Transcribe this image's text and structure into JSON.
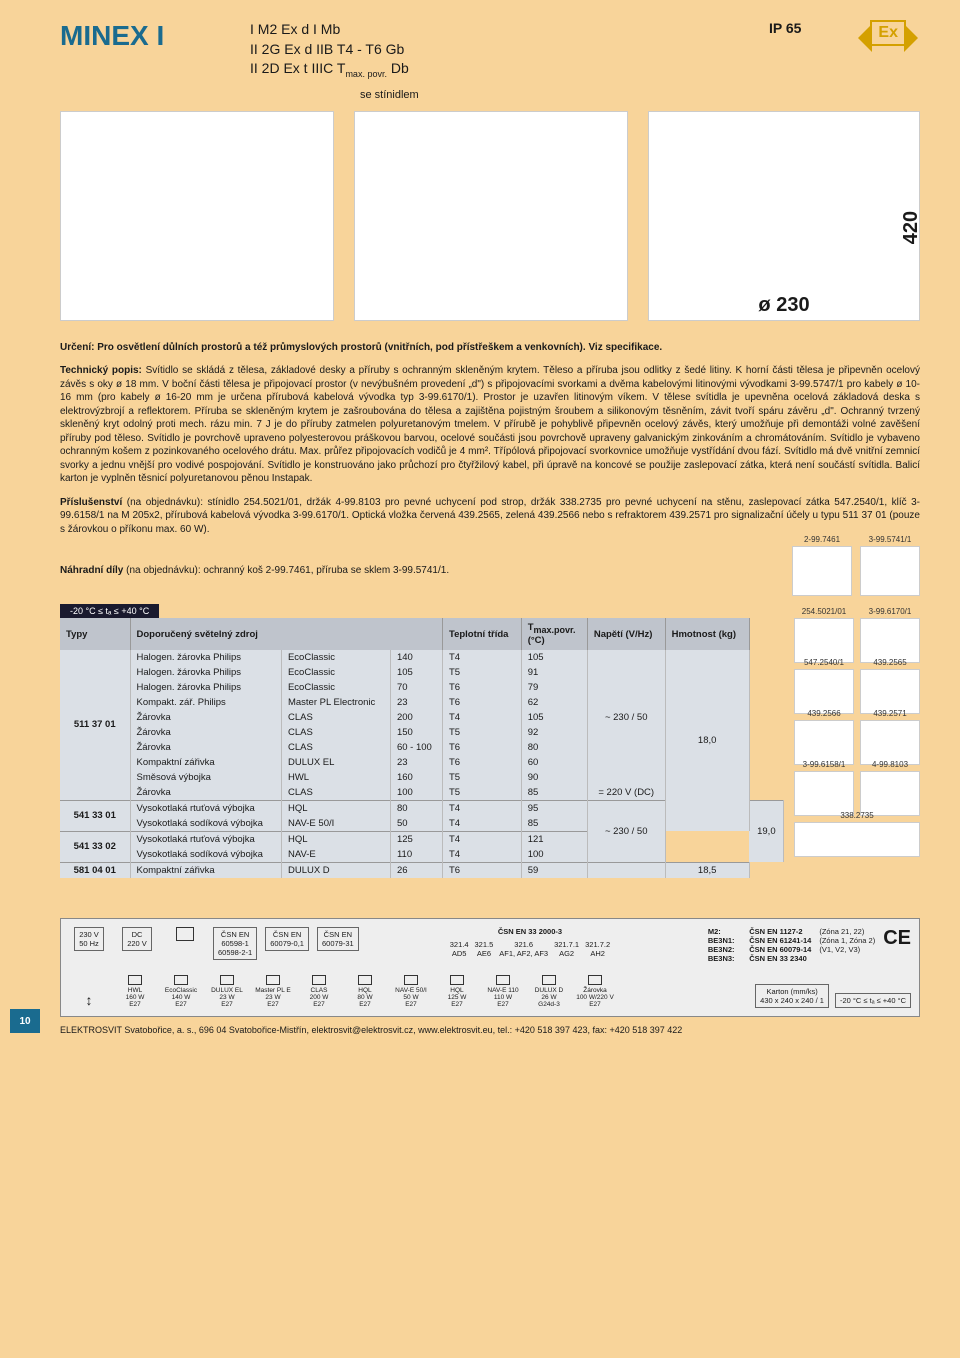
{
  "title": "MINEX I",
  "ratings": [
    "I M2 Ex d I Mb",
    "II 2G Ex d IIB  T4 - T6  Gb"
  ],
  "rating3_a": "II 2D Ex t IIIC  T",
  "rating3_sub": "max. povr.",
  "rating3_b": "  Db",
  "ip": "IP 65",
  "ex_label": "Ex",
  "stin": "se stínidlem",
  "dim_w": "ø 230",
  "dim_h": "420",
  "urceni": "Určení: Pro osvětlení důlních prostorů a též průmyslových prostorů (vnitřních, pod přístřeškem a venkovních). Viz specifikace.",
  "tech_label": "Technický popis:",
  "tech": " Svítidlo se skládá z tělesa, základové desky a příruby s ochranným skleněným krytem. Těleso a příruba jsou odlitky z šedé litiny. K horní části tělesa je připevněn ocelový závěs s oky ø 18 mm. V boční části tělesa je připojovací prostor (v nevýbušném provedení „d\") s připojovacími svorkami a dvěma kabelovými litinovými vývodkami 3-99.5747/1 pro kabely ø 10-16 mm (pro kabely ø 16-20 mm je určena přírubová kabelová vývodka typ 3-99.6170/1). Prostor je uzavřen litinovým víkem. V tělese svítidla je upevněna ocelová základová deska s elektrovýzbrojí a reflektorem. Příruba se skleněným krytem je zašroubována do tělesa a zajištěna pojistným šroubem a silikonovým těsněním, závit tvoří spáru závěru „d\". Ochranný tvrzený skleněný kryt odolný proti mech. rázu min. 7 J je do příruby zatmelen polyuretanovým tmelem. V přírubě je pohyblivě připevněn ocelový závěs, který umožňuje při demontáži volné zavěšení příruby pod těleso. Svítidlo je povrchově upraveno polyesterovou práškovou barvou, ocelové součásti jsou povrchově upraveny galvanickým zinkováním a chromátováním. Svítidlo je vybaveno ochranným košem z pozinkovaného ocelového drátu. Max. průřez připojovacích vodičů je 4 mm². Třípólová připojovací svorkovnice umožňuje vystřídání dvou fází. Svítidlo má dvě vnitřní zemnicí svorky a jednu vnější pro vodivé pospojování. Svítidlo je konstruováno jako průchozí pro čtyřžilový kabel, při úpravě na koncové se použije zaslepovací zátka, která není součástí svítidla. Balicí karton je vyplněn těsnicí polyuretanovou pěnou Instapak.",
  "prisl_label": "Příslušenství",
  "prisl": " (na objednávku): stínidlo 254.5021/01, držák 4-99.8103 pro pevné uchycení pod strop, držák 338.2735 pro pevné uchycení na stěnu, zaslepovací zátka 547.2540/1, klíč 3-99.6158/1 na M 205x2, přírubová kabelová vývodka 3-99.6170/1.  Optická vložka červená 439.2565, zelená 439.2566 nebo s refraktorem 439.2571 pro signalizační účely u typu 511 37 01 (pouze s žárovkou o příkonu max. 60 W).",
  "spare_label": "Náhradní díly",
  "spare": " (na objednávku): ochranný koš 2-99.7461, příruba se sklem 3-99.5741/1.",
  "spare_parts": [
    "2-99.7461",
    "3-99.5741/1"
  ],
  "temp_range": "-20 °C ≤ tₐ ≤ +40 °C",
  "headers": {
    "typy": "Typy",
    "zdroj": "Doporučený světelný zdroj",
    "teplotni": "Teplotní třída",
    "tmax": "T",
    "tmax_sub": "max.povr.",
    "tmax_unit": "(°C)",
    "napeti": "Napětí (V/Hz)",
    "hmot": "Hmotnost (kg)"
  },
  "types": {
    "t1": {
      "code": "511 37 01",
      "napeti": "~ 230 / 50",
      "hmot": "18,0",
      "rows": [
        [
          "Halogen. žárovka Philips",
          "EcoClassic",
          "140",
          "T4",
          "105"
        ],
        [
          "Halogen. žárovka Philips",
          "EcoClassic",
          "105",
          "T5",
          "91"
        ],
        [
          "Halogen. žárovka Philips",
          "EcoClassic",
          "70",
          "T6",
          "79"
        ],
        [
          "Kompakt. zář. Philips",
          "Master PL Electronic",
          "23",
          "T6",
          "62"
        ],
        [
          "Žárovka",
          "CLAS",
          "200",
          "T4",
          "105"
        ],
        [
          "Žárovka",
          "CLAS",
          "150",
          "T5",
          "92"
        ],
        [
          "Žárovka",
          "CLAS",
          "60 - 100",
          "T6",
          "80"
        ],
        [
          "Kompaktní zářivka",
          "DULUX EL",
          "23",
          "T6",
          "60"
        ],
        [
          "Směsová výbojka",
          "HWL",
          "160",
          "T5",
          "90"
        ]
      ],
      "extra": [
        "Žárovka",
        "CLAS",
        "100",
        "T5",
        "85",
        "= 220 V (DC)"
      ]
    },
    "t2": {
      "code": "541 33 01",
      "rows": [
        [
          "Vysokotlaká rtuťová výbojka",
          "HQL",
          "80",
          "T4",
          "95"
        ],
        [
          "Vysokotlaká sodíková výbojka",
          "NAV-E 50/I",
          "50",
          "T4",
          "85"
        ]
      ],
      "napeti": "~ 230 / 50",
      "hmot": "19,0"
    },
    "t3": {
      "code": "541 33 02",
      "rows": [
        [
          "Vysokotlaká rtuťová výbojka",
          "HQL",
          "125",
          "T4",
          "121"
        ],
        [
          "Vysokotlaká sodíková výbojka",
          "NAV-E",
          "110",
          "T4",
          "100"
        ]
      ]
    },
    "t4": {
      "code": "581 04 01",
      "rows": [
        [
          "Kompaktní zářivka",
          "DULUX D",
          "26",
          "T6",
          "59"
        ]
      ],
      "hmot": "18,5"
    }
  },
  "side_parts": [
    [
      "254.5021/01",
      "3-99.6170/1"
    ],
    [
      "547.2540/1",
      "439.2565"
    ],
    [
      "439.2566",
      "439.2571"
    ],
    [
      "3-99.6158/1",
      "4-99.8103"
    ]
  ],
  "side_last": "338.2735",
  "bottom": {
    "v1": "230 V\n50 Hz",
    "v2": "DC\n220 V",
    "std1": "ČSN EN\n60598-1\n60598-2-1",
    "std2": "ČSN EN\n60079-0,1",
    "std3": "ČSN EN\n60079-31",
    "std4_head": "ČSN EN 33 2000-3",
    "std4": "321.4\nAD5",
    "std5": "321.5\nAE6",
    "std6": "321.6\nAF1, AF2, AF3",
    "std7": "321.7.1\nAG2",
    "std8": "321.7.2\nAH2",
    "m2": "M2:\nBE3N1:\nBE3N2:\nBE3N3:",
    "m2std": "ČSN EN 1127-2\nČSN EN 61241-14\nČSN EN 60079-14\nČSN EN 33 2340",
    "zones": "(Zóna 21, 22)\n(Zóna 1, Zóna 2)\n(V1, V2, V3)",
    "lamps": [
      [
        "HWL",
        "160 W",
        "E27"
      ],
      [
        "EcoClassic",
        "140 W",
        "E27"
      ],
      [
        "DULUX EL",
        "23 W",
        "E27"
      ],
      [
        "Master PL E",
        "23 W",
        "E27"
      ],
      [
        "CLAS",
        "200 W",
        "E27"
      ],
      [
        "HQL",
        "80 W",
        "E27"
      ],
      [
        "NAV-E 50/I",
        "50 W",
        "E27"
      ],
      [
        "HQL",
        "125 W",
        "E27"
      ],
      [
        "NAV-E 110",
        "110 W",
        "E27"
      ],
      [
        "DULUX D",
        "26 W",
        "G24d-3"
      ],
      [
        "Žárovka",
        "100 W/220 V",
        "E27"
      ]
    ],
    "karton": "Karton (mm/ks)\n430 x 240 x 240 / 1",
    "temp": "-20 °C ≤ tₐ ≤ +40 °C"
  },
  "pagenum": "10",
  "footer": "ELEKTROSVIT Svatobořice, a. s., 696 04  Svatobořice-Mistřín, elektrosvit@elektrosvit.cz, www.elektrosvit.eu, tel.: +420 518 397 423, fax: +420 518 397 422"
}
